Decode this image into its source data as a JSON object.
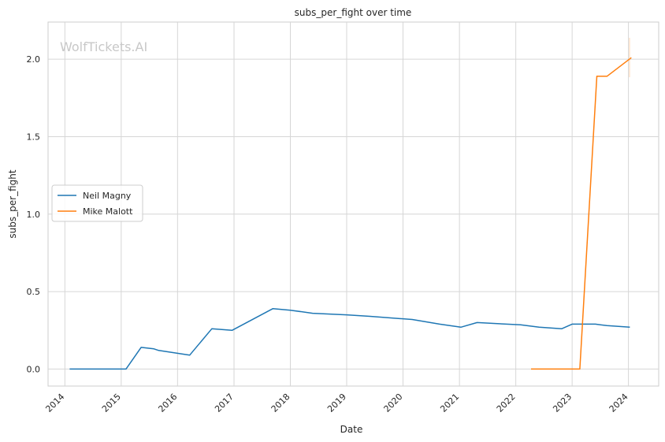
{
  "chart_data": {
    "type": "line",
    "title": "subs_per_fight over time",
    "xlabel": "Date",
    "ylabel": "subs_per_fight",
    "watermark": "WolfTickets.AI",
    "x_ticks": [
      "2014",
      "2015",
      "2016",
      "2017",
      "2018",
      "2019",
      "2020",
      "2021",
      "2022",
      "2023",
      "2024"
    ],
    "y_ticks": [
      "0.0",
      "0.5",
      "1.0",
      "1.5",
      "2.0"
    ],
    "xlim": [
      "2013-09-14",
      "2024-07-15"
    ],
    "ylim": [
      -0.11,
      2.24
    ],
    "grid": true,
    "legend_position": "center-left",
    "series": [
      {
        "name": "Neil Magny",
        "color": "#1f77b4",
        "points": [
          [
            "2014-02-01",
            0.0
          ],
          [
            "2015-02-01",
            0.0
          ],
          [
            "2015-05-10",
            0.14
          ],
          [
            "2015-08-01",
            0.13
          ],
          [
            "2015-09-01",
            0.12
          ],
          [
            "2016-03-20",
            0.09
          ],
          [
            "2016-08-10",
            0.26
          ],
          [
            "2016-12-20",
            0.25
          ],
          [
            "2017-09-10",
            0.39
          ],
          [
            "2018-01-01",
            0.38
          ],
          [
            "2018-05-25",
            0.36
          ],
          [
            "2019-01-01",
            0.35
          ],
          [
            "2019-06-01",
            0.34
          ],
          [
            "2020-03-01",
            0.32
          ],
          [
            "2020-08-25",
            0.29
          ],
          [
            "2021-01-10",
            0.27
          ],
          [
            "2021-04-25",
            0.3
          ],
          [
            "2022-02-01",
            0.285
          ],
          [
            "2022-06-01",
            0.27
          ],
          [
            "2022-10-25",
            0.26
          ],
          [
            "2023-01-01",
            0.29
          ],
          [
            "2023-06-01",
            0.29
          ],
          [
            "2023-08-15",
            0.28
          ],
          [
            "2024-01-10",
            0.27
          ]
        ]
      },
      {
        "name": "Mike Malott",
        "color": "#ff7f0e",
        "points": [
          [
            "2022-04-10",
            0.0
          ],
          [
            "2023-02-20",
            0.0
          ],
          [
            "2023-06-10",
            1.89
          ],
          [
            "2023-08-15",
            1.89
          ],
          [
            "2024-01-20",
            2.01
          ]
        ]
      }
    ]
  }
}
